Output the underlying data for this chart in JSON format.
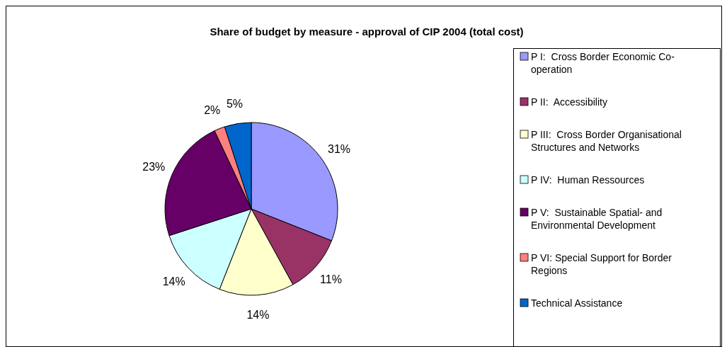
{
  "chart_data": {
    "type": "pie",
    "title": "Share of budget by measure - approval of CIP 2004 (total cost)",
    "categories": [
      "P I:  Cross Border Economic Co-operation",
      "P II:  Accessibility",
      "P III:  Cross Border Organisational Structures and Networks",
      "P IV:  Human Ressources",
      "P V:  Sustainable Spatial- and Environmental Development",
      "P VI: Special Support for Border Regions",
      "Technical Assistance"
    ],
    "values": [
      31,
      11,
      14,
      14,
      23,
      2,
      5
    ],
    "colors": [
      "#9999ff",
      "#993366",
      "#ffffcc",
      "#ccffff",
      "#660066",
      "#ff8080",
      "#0066cc"
    ],
    "value_labels": [
      "31%",
      "11%",
      "14%",
      "14%",
      "23%",
      "2%",
      "5%"
    ],
    "legend": "right"
  }
}
